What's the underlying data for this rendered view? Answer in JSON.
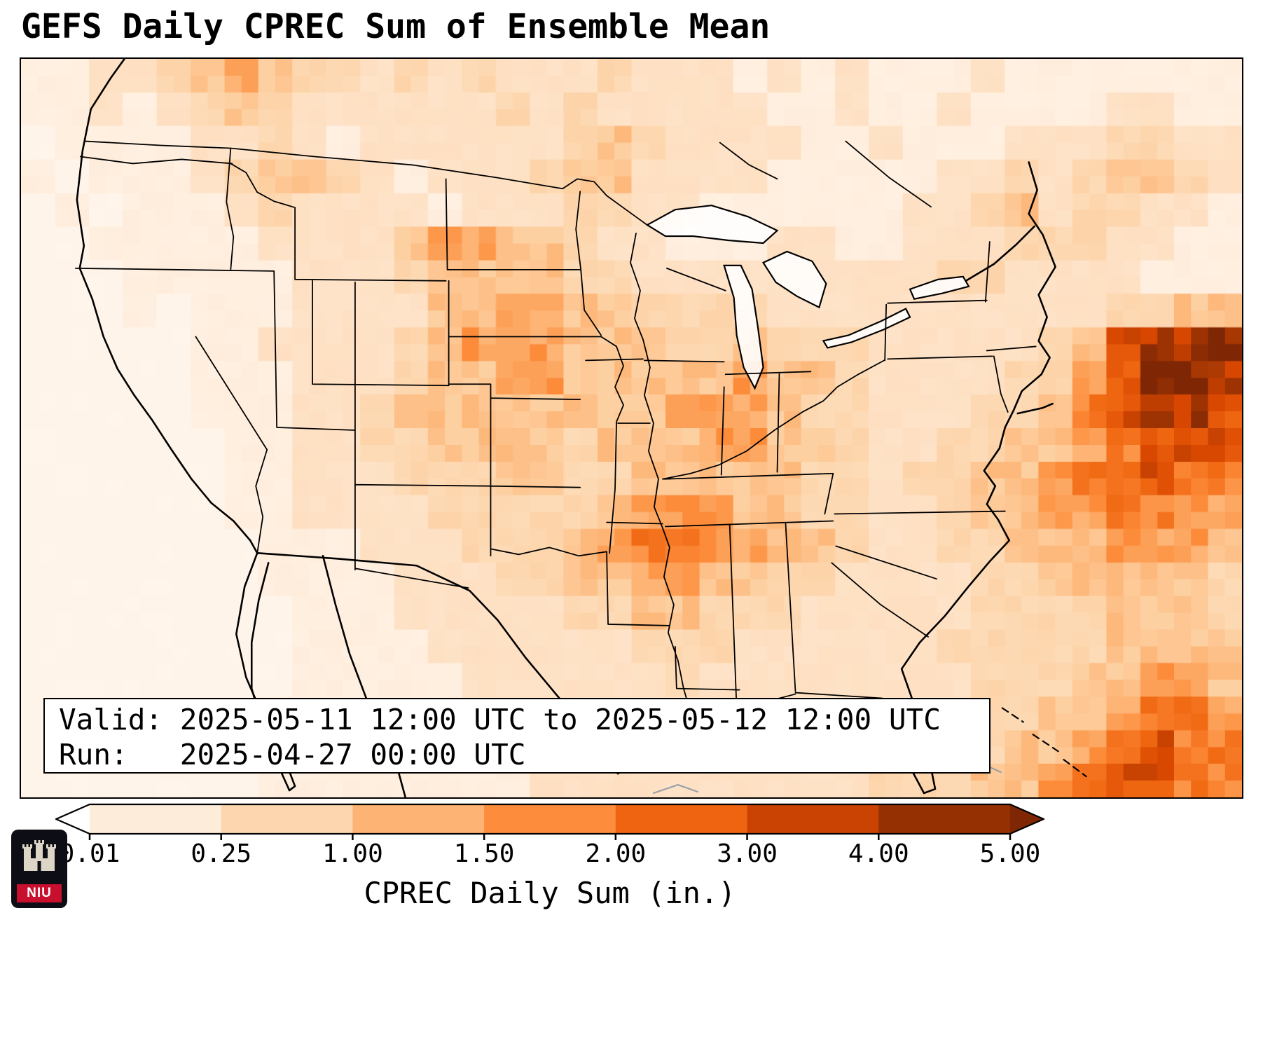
{
  "title": "GEFS Daily CPREC Sum of Ensemble Mean",
  "info_box": {
    "line1": "Valid: 2025-05-11 12:00 UTC to 2025-05-12 12:00 UTC",
    "line2": "Run:   2025-04-27 00:00 UTC"
  },
  "colorbar": {
    "label": "CPREC Daily Sum (in.)",
    "ticks": [
      "0.01",
      "0.25",
      "1.00",
      "1.50",
      "2.00",
      "3.00",
      "4.00",
      "5.00"
    ],
    "under_color": "#ffffff",
    "over_color": "#7f2704",
    "outline_color": "#000000"
  },
  "logo": {
    "text": "NIU",
    "bg_color": "#0d0d15",
    "band_color": "#c8102e",
    "castle_color": "#ddd6c6"
  },
  "chart_data": {
    "type": "heatmap",
    "title": "GEFS Daily CPREC Sum of Ensemble Mean",
    "variable": "CPREC Daily Sum",
    "units": "in.",
    "xlabel": "CPREC Daily Sum (in.)",
    "valid_period": "2025-05-11 12:00 UTC to 2025-05-12 12:00 UTC",
    "run_time": "2025-04-27 00:00 UTC",
    "colormap": "Oranges",
    "legend_position": "bottom",
    "scale_ticks": [
      0.01,
      0.25,
      1.0,
      1.5,
      2.0,
      3.0,
      4.0,
      5.0
    ],
    "colormap_stops": [
      [
        0.0,
        "#fff5eb"
      ],
      [
        0.125,
        "#fee6ce"
      ],
      [
        0.25,
        "#fdd0a2"
      ],
      [
        0.375,
        "#fdae6b"
      ],
      [
        0.5,
        "#fd8d3c"
      ],
      [
        0.625,
        "#f16913"
      ],
      [
        0.75,
        "#d94801"
      ],
      [
        0.875,
        "#a63603"
      ],
      [
        1.0,
        "#7f2704"
      ]
    ],
    "grid": {
      "description": "Coarse 36x22 grid of daily precipitation (inches) over CONUS domain, west-to-east, north-to-south; chars map to inches via level_map",
      "level_map": {
        ".": 0.0,
        "0": 0.02,
        "1": 0.1,
        "2": 0.3,
        "3": 0.6,
        "4": 1.0,
        "5": 1.5,
        "6": 2.0,
        "7": 3.0,
        "8": 4.0,
        "9": 5.0
      },
      "rows": [
        [
          "1122",
          "34543",
          "323232",
          "22322",
          "212121",
          "11211",
          "11111"
        ],
        [
          "1121",
          "23432",
          "222223",
          "23222",
          "221121",
          "12111",
          "12211"
        ],
        [
          "0111",
          "12232",
          "122222",
          "23432",
          "222112",
          "11122",
          "23322"
        ],
        [
          "1011",
          "12344",
          "321222",
          "34422",
          "221111",
          "12232",
          "34432"
        ],
        [
          "0101",
          "11232",
          "222122",
          "23322",
          "111111",
          "22342",
          "33221"
        ],
        [
          "0011",
          "11122",
          "224554",
          "43221",
          "112211",
          "22233",
          "32211"
        ],
        [
          "0001",
          "11112",
          "223444",
          "43322",
          "222222",
          "23322",
          "22111"
        ],
        [
          "0001",
          "01112",
          "222445",
          "54433",
          "332222",
          "22222",
          "23344"
        ],
        [
          "0000",
          "01122",
          "223455",
          "54443",
          "343332",
          "22223",
          "47889"
        ],
        [
          "0000",
          "01112",
          "223445",
          "54444",
          "454432",
          "22233",
          "57998"
        ],
        [
          "0000",
          "01112",
          "234444",
          "44445",
          "554332",
          "22334",
          "67887"
        ],
        [
          "0000",
          "00112",
          "233444",
          "43444",
          "554432",
          "23344",
          "56777"
        ],
        [
          "0000",
          "00112",
          "223334",
          "43344",
          "444332",
          "33445",
          "66766"
        ],
        [
          "0000",
          "00112",
          "222333",
          "33455",
          "544332",
          "23445",
          "56655"
        ],
        [
          "0000",
          "00011",
          "122233",
          "34566",
          "554432",
          "23344",
          "45554"
        ],
        [
          "0000",
          "00011",
          "112223",
          "34455",
          "443322",
          "22334",
          "44443"
        ],
        [
          "0000",
          "00001",
          "112222",
          "23344",
          "333222",
          "22333",
          "34443"
        ],
        [
          "0000",
          "00001",
          "111222",
          "22233",
          "322222",
          "23333",
          "34444"
        ],
        [
          "0000",
          "00001",
          "111122",
          "22223",
          "222222",
          "22333",
          "44554"
        ],
        [
          "0000",
          "00011",
          "111122",
          "22222",
          "222222",
          "22334",
          "45665"
        ],
        [
          "0000",
          "00011",
          "111112",
          "22222",
          "222222",
          "23344",
          "56766"
        ],
        [
          "0000",
          "00011",
          "111111",
          "22222",
          "222223",
          "33445",
          "67766"
        ]
      ]
    }
  }
}
